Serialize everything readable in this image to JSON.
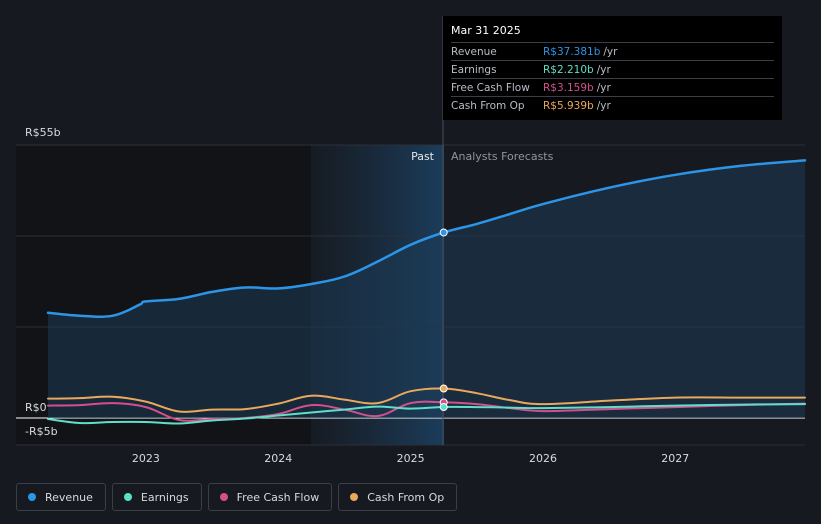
{
  "chart_data": {
    "type": "line",
    "title": "",
    "xlabel": "",
    "ylabel": "",
    "ylim": [
      -5,
      55
    ],
    "y_tick_labels": [
      "R$55b",
      "R$0",
      "-R$5b"
    ],
    "x_tick_labels": [
      "2023",
      "2024",
      "2025",
      "2026",
      "2027"
    ],
    "x_range": [
      2022.26,
      2027.98
    ],
    "past_label": "Past",
    "forecast_label": "Analysts Forecasts",
    "past_end": 2025.25,
    "series": [
      {
        "name": "Revenue",
        "color": "#2d95e6",
        "area": true,
        "x": [
          2022.26,
          2022.5,
          2022.75,
          2022.95,
          2023.0,
          2023.25,
          2023.5,
          2023.75,
          2024.0,
          2024.25,
          2024.5,
          2024.75,
          2025.0,
          2025.25,
          2025.5,
          2025.75,
          2026.0,
          2026.5,
          2027.0,
          2027.5,
          2027.98
        ],
        "y": [
          21.2,
          20.6,
          20.6,
          22.8,
          23.5,
          24.0,
          25.4,
          26.3,
          26.1,
          27.0,
          28.5,
          31.5,
          34.9,
          37.381,
          39.1,
          41.1,
          43.1,
          46.4,
          49.0,
          50.8,
          51.9
        ]
      },
      {
        "name": "Earnings",
        "color": "#5fdfc7",
        "area": false,
        "x": [
          2022.26,
          2022.5,
          2022.75,
          2023.0,
          2023.25,
          2023.5,
          2023.75,
          2024.0,
          2024.25,
          2024.5,
          2024.75,
          2025.0,
          2025.25,
          2025.5,
          2025.75,
          2026.0,
          2026.5,
          2027.0,
          2027.5,
          2027.98
        ],
        "y": [
          -0.2,
          -1.0,
          -0.8,
          -0.8,
          -1.1,
          -0.5,
          -0.1,
          0.5,
          1.1,
          1.7,
          2.3,
          1.9,
          2.21,
          2.2,
          2.1,
          2.0,
          2.2,
          2.5,
          2.7,
          2.8
        ]
      },
      {
        "name": "Free Cash Flow",
        "color": "#d4508d",
        "area": false,
        "x": [
          2022.26,
          2022.5,
          2022.75,
          2023.0,
          2023.25,
          2023.5,
          2023.75,
          2024.0,
          2024.25,
          2024.5,
          2024.75,
          2025.0,
          2025.25,
          2025.5,
          2025.75,
          2026.0,
          2026.5,
          2027.0,
          2027.5,
          2027.98
        ],
        "y": [
          2.5,
          2.6,
          3.0,
          2.2,
          -0.4,
          -0.2,
          0.0,
          0.8,
          2.6,
          1.7,
          0.4,
          3.0,
          3.159,
          2.8,
          2.0,
          1.4,
          1.8,
          2.2,
          2.6,
          2.9
        ]
      },
      {
        "name": "Cash From Op",
        "color": "#e8a95d",
        "area": false,
        "x": [
          2022.26,
          2022.5,
          2022.75,
          2023.0,
          2023.25,
          2023.5,
          2023.75,
          2024.0,
          2024.25,
          2024.5,
          2024.75,
          2025.0,
          2025.25,
          2025.5,
          2025.75,
          2026.0,
          2026.5,
          2027.0,
          2027.5,
          2027.98
        ],
        "y": [
          3.9,
          4.0,
          4.3,
          3.3,
          1.3,
          1.7,
          1.8,
          2.9,
          4.5,
          3.7,
          3.0,
          5.4,
          5.939,
          5.0,
          3.6,
          2.8,
          3.5,
          4.1,
          4.1,
          4.1
        ]
      }
    ]
  },
  "tooltip": {
    "date": "Mar 31 2025",
    "rows": [
      {
        "label": "Revenue",
        "value": "R$37.381b",
        "unit": "/yr",
        "color": "#2d95e6"
      },
      {
        "label": "Earnings",
        "value": "R$2.210b",
        "unit": "/yr",
        "color": "#5fdfc7"
      },
      {
        "label": "Free Cash Flow",
        "value": "R$3.159b",
        "unit": "/yr",
        "color": "#d4508d"
      },
      {
        "label": "Cash From Op",
        "value": "R$5.939b",
        "unit": "/yr",
        "color": "#e8a95d"
      }
    ]
  },
  "legend": {
    "items": [
      {
        "label": "Revenue",
        "color": "#2d95e6"
      },
      {
        "label": "Earnings",
        "color": "#5fdfc7"
      },
      {
        "label": "Free Cash Flow",
        "color": "#d4508d"
      },
      {
        "label": "Cash From Op",
        "color": "#e8a95d"
      }
    ]
  }
}
